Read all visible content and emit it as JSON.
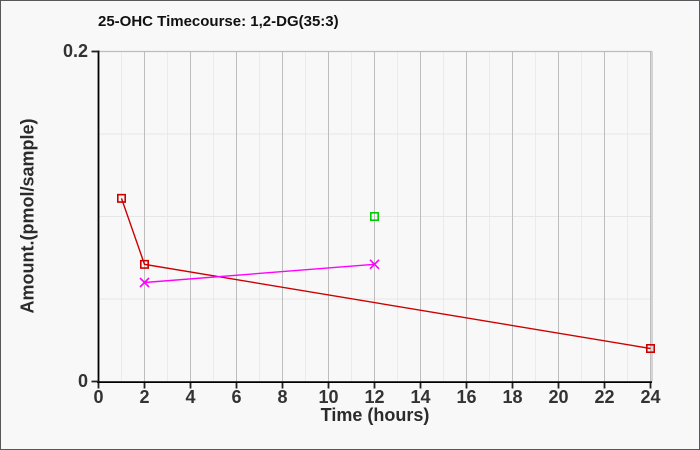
{
  "frame": {
    "background": "#f8f8f8",
    "border_color": "#58585a"
  },
  "chart_data": {
    "type": "line",
    "title": "25-OHC Timecourse: 1,2-DG(35:3)",
    "xlabel": "Time (hours)",
    "ylabel": "Amount.(pmol/sample)",
    "xlim": [
      0,
      24.2
    ],
    "ylim": [
      0,
      0.2
    ],
    "x_major_ticks": [
      0,
      2,
      4,
      6,
      8,
      10,
      12,
      14,
      16,
      18,
      20,
      22,
      24
    ],
    "x_minor_tick_step": 1,
    "y_ticks": [
      {
        "value": 0,
        "label": "0"
      },
      {
        "value": 0.2,
        "label": "0.2"
      }
    ],
    "y_grid_step": 0.05,
    "grid": true,
    "legend_position": "none",
    "axis_color": "#000000",
    "major_grid_color": "#bdbdbd",
    "minor_grid_color": "#ebebeb",
    "horizontal_grid_color": "#e6e6e6",
    "tick_label_color": "#333333",
    "series": [
      {
        "name": "red-timecourse",
        "color": "#cc0000",
        "marker": "square-open",
        "line": true,
        "points": [
          [
            1,
            0.111
          ],
          [
            2,
            0.071
          ],
          [
            24,
            0.02
          ]
        ]
      },
      {
        "name": "magenta-timecourse",
        "color": "#ff00ff",
        "marker": "x",
        "line": true,
        "points": [
          [
            2,
            0.06
          ],
          [
            12,
            0.071
          ]
        ]
      },
      {
        "name": "green-single-point",
        "color": "#00cc00",
        "marker": "square-open",
        "line": false,
        "points": [
          [
            12,
            0.1
          ]
        ]
      }
    ]
  }
}
